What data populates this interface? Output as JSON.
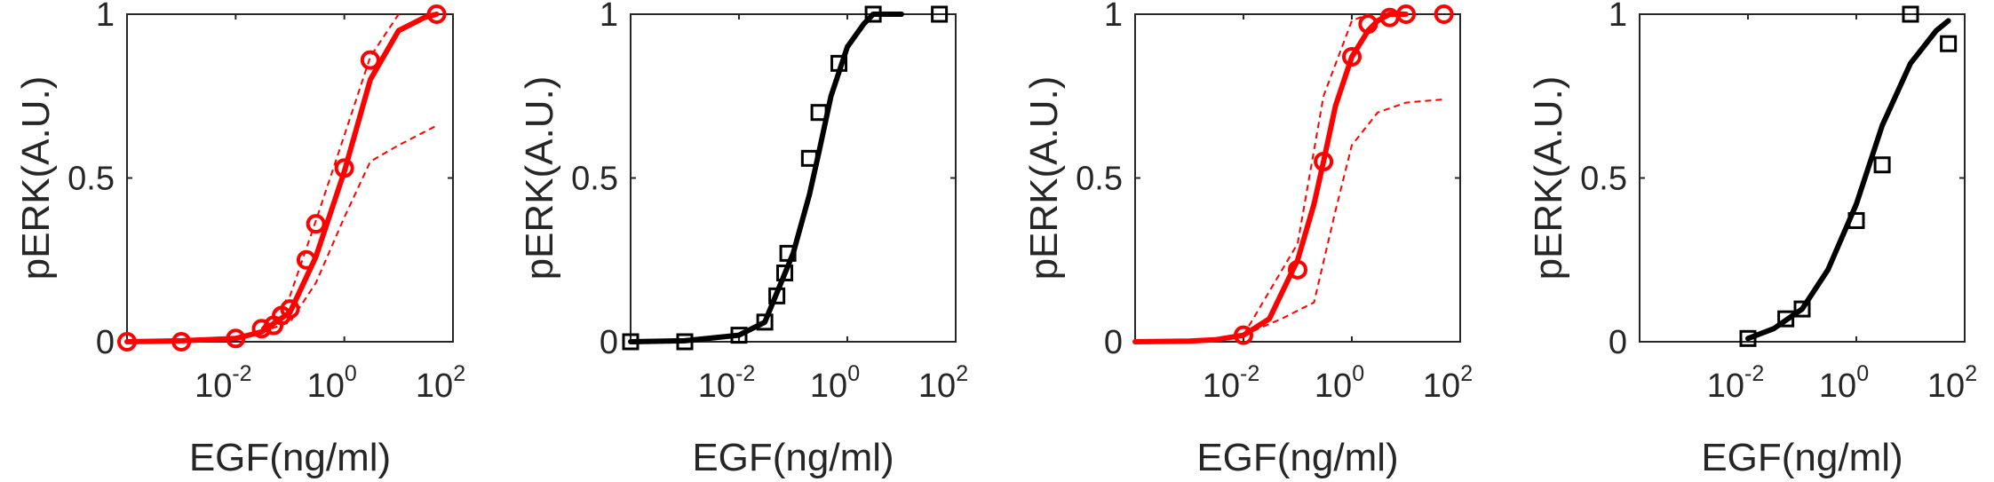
{
  "chart_data": [
    {
      "type": "line",
      "xscale": "log",
      "xlim": [
        0.0001,
        100
      ],
      "ylim": [
        0,
        1
      ],
      "xlabel": "EGF(ng/ml)",
      "ylabel": "pERK(A.U.)",
      "yticks": [
        "0",
        "0.5",
        "1"
      ],
      "xticks": [
        {
          "base": "10",
          "exp": "-2"
        },
        {
          "base": "10",
          "exp": "0"
        },
        {
          "base": "10",
          "exp": "2"
        }
      ],
      "color": "#ff0000",
      "marker": "circle",
      "points": {
        "x": [
          0.0001,
          0.001,
          0.01,
          0.03,
          0.05,
          0.07,
          0.1,
          0.2,
          0.3,
          1,
          3,
          50
        ],
        "y": [
          0.0,
          0.0,
          0.01,
          0.04,
          0.05,
          0.08,
          0.1,
          0.25,
          0.36,
          0.53,
          0.86,
          1.0
        ]
      },
      "fit": {
        "x": [
          0.0001,
          0.001,
          0.01,
          0.03,
          0.1,
          0.3,
          1,
          3,
          10,
          30,
          50
        ],
        "y": [
          0.0,
          0.003,
          0.01,
          0.03,
          0.09,
          0.26,
          0.52,
          0.8,
          0.95,
          0.99,
          1.0
        ]
      },
      "band_upper": {
        "x": [
          0.03,
          0.1,
          0.3,
          1,
          3,
          10
        ],
        "y": [
          0.04,
          0.14,
          0.37,
          0.63,
          0.87,
          1.0
        ]
      },
      "band_lower": {
        "x": [
          0.03,
          0.1,
          0.3,
          1,
          3,
          10,
          50
        ],
        "y": [
          0.03,
          0.06,
          0.18,
          0.38,
          0.55,
          0.6,
          0.66
        ]
      }
    },
    {
      "type": "line",
      "xscale": "log",
      "xlim": [
        0.0001,
        100
      ],
      "ylim": [
        0,
        1
      ],
      "xlabel": "EGF(ng/ml)",
      "ylabel": "pERK(A.U.)",
      "yticks": [
        "0",
        "0.5",
        "1"
      ],
      "xticks": [
        {
          "base": "10",
          "exp": "-2"
        },
        {
          "base": "10",
          "exp": "0"
        },
        {
          "base": "10",
          "exp": "2"
        }
      ],
      "color": "#000000",
      "marker": "square",
      "points": {
        "x": [
          0.0001,
          0.001,
          0.01,
          0.03,
          0.05,
          0.07,
          0.08,
          0.2,
          0.3,
          0.7,
          3,
          50
        ],
        "y": [
          0.0,
          0.0,
          0.02,
          0.06,
          0.14,
          0.21,
          0.27,
          0.56,
          0.7,
          0.85,
          1.0,
          1.0
        ]
      },
      "fit": {
        "x": [
          0.0001,
          0.001,
          0.01,
          0.03,
          0.1,
          0.2,
          0.3,
          0.5,
          1,
          2,
          3,
          10
        ],
        "y": [
          0.0,
          0.003,
          0.02,
          0.06,
          0.27,
          0.45,
          0.58,
          0.75,
          0.9,
          0.97,
          1.0,
          1.0
        ]
      }
    },
    {
      "type": "line",
      "xscale": "log",
      "xlim": [
        0.0001,
        100
      ],
      "ylim": [
        0,
        1
      ],
      "xlabel": "EGF(ng/ml)",
      "ylabel": "pERK(A.U.)",
      "yticks": [
        "0",
        "0.5",
        "1"
      ],
      "xticks": [
        {
          "base": "10",
          "exp": "-2"
        },
        {
          "base": "10",
          "exp": "0"
        },
        {
          "base": "10",
          "exp": "2"
        }
      ],
      "color": "#ff0000",
      "marker": "circle",
      "points": {
        "x": [
          0.01,
          0.1,
          0.3,
          1,
          2,
          5,
          10,
          50
        ],
        "y": [
          0.02,
          0.22,
          0.55,
          0.87,
          0.97,
          0.99,
          1.0,
          1.0
        ]
      },
      "fit": {
        "x": [
          0.0001,
          0.001,
          0.003,
          0.01,
          0.03,
          0.1,
          0.2,
          0.3,
          0.5,
          1,
          2,
          3,
          5,
          10
        ],
        "y": [
          0.0,
          0.002,
          0.006,
          0.02,
          0.07,
          0.25,
          0.42,
          0.55,
          0.72,
          0.87,
          0.95,
          0.98,
          1.0,
          1.0
        ]
      },
      "band_upper": {
        "x": [
          0.01,
          0.1,
          0.3,
          1,
          2
        ],
        "y": [
          0.02,
          0.3,
          0.75,
          0.98,
          1.0
        ]
      },
      "band_lower": {
        "x": [
          0.01,
          0.05,
          0.2,
          0.5,
          1,
          3,
          10,
          50
        ],
        "y": [
          0.02,
          0.07,
          0.12,
          0.4,
          0.6,
          0.7,
          0.73,
          0.74
        ]
      }
    },
    {
      "type": "line",
      "xscale": "log",
      "xlim": [
        0.0001,
        100
      ],
      "ylim": [
        0,
        1
      ],
      "xlabel": "EGF(ng/ml)",
      "ylabel": "pERK(A.U.)",
      "yticks": [
        "0",
        "0.5",
        "1"
      ],
      "xticks": [
        {
          "base": "10",
          "exp": "-2"
        },
        {
          "base": "10",
          "exp": "0"
        },
        {
          "base": "10",
          "exp": "2"
        }
      ],
      "color": "#000000",
      "marker": "square",
      "points": {
        "x": [
          0.01,
          0.05,
          0.1,
          1,
          3,
          10,
          50
        ],
        "y": [
          0.01,
          0.07,
          0.1,
          0.37,
          0.54,
          1.0,
          0.91
        ]
      },
      "fit": {
        "x": [
          0.01,
          0.03,
          0.1,
          0.3,
          1,
          3,
          10,
          30,
          50
        ],
        "y": [
          0.01,
          0.04,
          0.1,
          0.22,
          0.42,
          0.66,
          0.85,
          0.95,
          0.98
        ]
      }
    }
  ]
}
